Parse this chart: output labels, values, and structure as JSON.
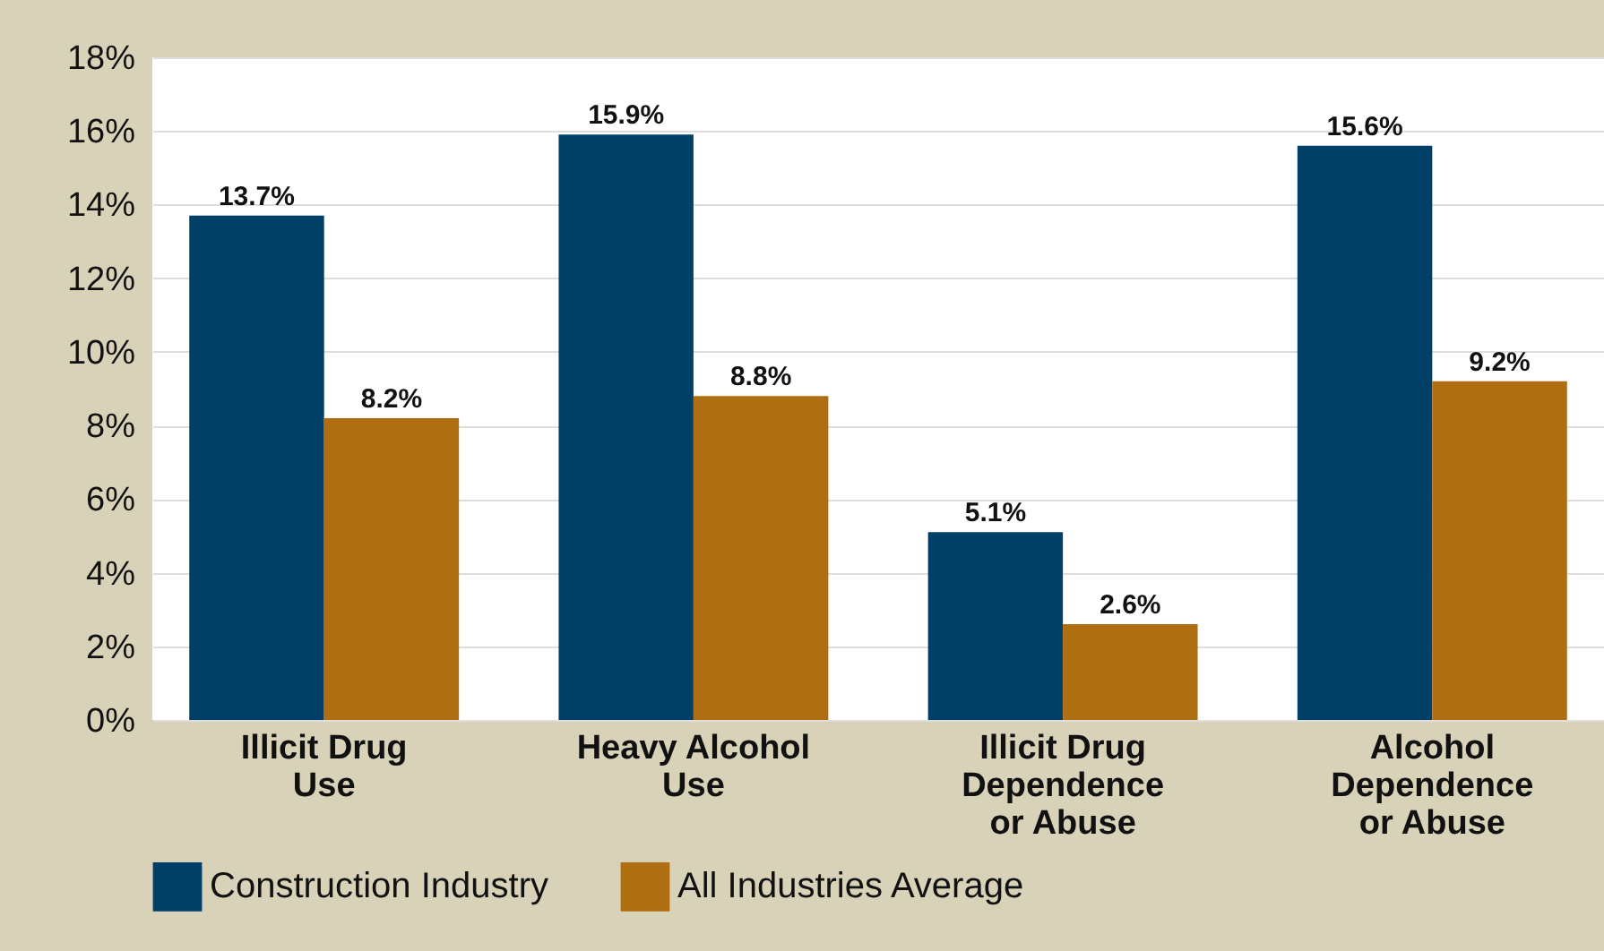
{
  "chart_data": {
    "type": "bar",
    "categories": [
      "Illicit Drug Use",
      "Heavy Alcohol Use",
      "Illicit Drug Dependence or Abuse",
      "Alcohol Dependence or Abuse"
    ],
    "series": [
      {
        "name": "Construction Industry",
        "color": "#003f66",
        "values": [
          13.7,
          15.9,
          5.1,
          15.6
        ],
        "value_labels": [
          "13.7%",
          "15.9%",
          "5.1%",
          "15.6%"
        ]
      },
      {
        "name": "All Industries Average",
        "color": "#b06e12",
        "values": [
          8.2,
          8.8,
          2.6,
          9.2
        ],
        "value_labels": [
          "8.2%",
          "8.8%",
          "2.6%",
          "9.2%"
        ]
      }
    ],
    "ylim": [
      0,
      18
    ],
    "yticks": [
      {
        "value": 0,
        "label": "0%"
      },
      {
        "value": 2,
        "label": "2%"
      },
      {
        "value": 4,
        "label": "4%"
      },
      {
        "value": 6,
        "label": "6%"
      },
      {
        "value": 8,
        "label": "8%"
      },
      {
        "value": 10,
        "label": "10%"
      },
      {
        "value": 12,
        "label": "12%"
      },
      {
        "value": 14,
        "label": "14%"
      },
      {
        "value": 16,
        "label": "16%"
      },
      {
        "value": 18,
        "label": "18%"
      }
    ],
    "grid": "y",
    "legend": "bottom"
  }
}
